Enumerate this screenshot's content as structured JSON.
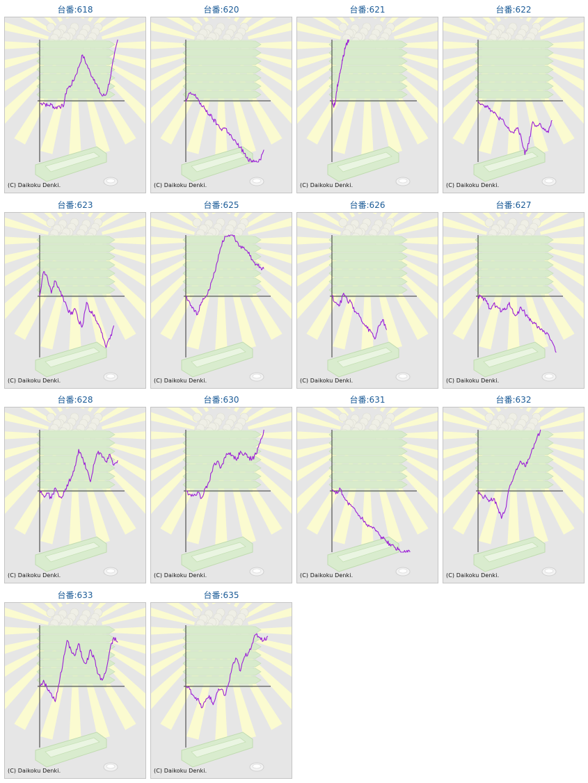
{
  "copyright": "(C) Daikoku Denki.",
  "colors": {
    "line": "#9b1fd6",
    "axis": "#333333",
    "title": "#1a5a96",
    "background": "#e6e6e6",
    "rays": "#fbfbd0",
    "machine": "#d8ebcc"
  },
  "chart_data": [
    {
      "type": "line",
      "title": "台番:618",
      "ylim": [
        -100,
        100
      ],
      "x": [
        0,
        5,
        10,
        15,
        20,
        25,
        30,
        35,
        40,
        45,
        50,
        55,
        60,
        65,
        70,
        75,
        80,
        85,
        90,
        95,
        100
      ],
      "values": [
        -5,
        -3,
        -8,
        -6,
        -12,
        -8,
        -10,
        20,
        25,
        38,
        55,
        75,
        60,
        45,
        35,
        20,
        8,
        10,
        35,
        70,
        100
      ]
    },
    {
      "type": "line",
      "title": "台番:620",
      "ylim": [
        -100,
        100
      ],
      "x": [
        0,
        5,
        10,
        15,
        20,
        25,
        30,
        35,
        40,
        45,
        50,
        55,
        60,
        65,
        70,
        75,
        80,
        85,
        90,
        95,
        100
      ],
      "values": [
        -2,
        12,
        10,
        5,
        -8,
        -14,
        -22,
        -30,
        -38,
        -46,
        -44,
        -52,
        -62,
        -70,
        -76,
        -86,
        -98,
        -98,
        -98,
        -96,
        -80
      ]
    },
    {
      "type": "line",
      "title": "台番:621",
      "ylim": [
        -100,
        100
      ],
      "x": [
        0,
        2,
        4,
        6,
        8,
        10,
        12,
        14,
        16,
        18,
        20,
        22
      ],
      "values": [
        0,
        -8,
        -5,
        15,
        30,
        45,
        55,
        70,
        80,
        92,
        97,
        100
      ]
    },
    {
      "type": "line",
      "title": "台番:622",
      "ylim": [
        -100,
        100
      ],
      "x": [
        0,
        5,
        10,
        15,
        20,
        25,
        30,
        35,
        40,
        45,
        50,
        55,
        60,
        65,
        70,
        75,
        80,
        85,
        90,
        95
      ],
      "values": [
        0,
        -5,
        -8,
        -12,
        -20,
        -26,
        -30,
        -40,
        -48,
        -52,
        -45,
        -58,
        -88,
        -70,
        -34,
        -42,
        -38,
        -48,
        -52,
        -32
      ]
    },
    {
      "type": "line",
      "title": "台番:623",
      "ylim": [
        -100,
        100
      ],
      "x": [
        0,
        5,
        10,
        15,
        20,
        25,
        30,
        35,
        40,
        45,
        50,
        55,
        60,
        65,
        70,
        75,
        80,
        85,
        90,
        95
      ],
      "values": [
        0,
        40,
        30,
        5,
        25,
        12,
        -2,
        -18,
        -30,
        -20,
        -42,
        -48,
        -10,
        -25,
        -30,
        -45,
        -60,
        -84,
        -70,
        -48
      ]
    },
    {
      "type": "line",
      "title": "台番:625",
      "ylim": [
        -100,
        100
      ],
      "x": [
        0,
        5,
        10,
        15,
        20,
        25,
        30,
        35,
        40,
        45,
        50,
        55,
        60,
        65,
        70,
        75,
        80,
        85,
        90,
        95,
        100
      ],
      "values": [
        0,
        -10,
        -20,
        -30,
        -10,
        -2,
        10,
        30,
        55,
        80,
        98,
        100,
        100,
        90,
        82,
        78,
        70,
        60,
        52,
        48,
        45
      ]
    },
    {
      "type": "line",
      "title": "台番:626",
      "ylim": [
        -100,
        100
      ],
      "x": [
        0,
        5,
        10,
        15,
        20,
        25,
        30,
        35,
        40,
        45,
        50,
        55,
        60,
        65,
        70
      ],
      "values": [
        0,
        -10,
        -15,
        5,
        -8,
        -10,
        -25,
        -32,
        -45,
        -52,
        -58,
        -70,
        -48,
        -38,
        -55
      ]
    },
    {
      "type": "line",
      "title": "台番:627",
      "ylim": [
        -100,
        100
      ],
      "x": [
        0,
        5,
        10,
        15,
        20,
        25,
        30,
        35,
        40,
        45,
        50,
        55,
        60,
        65,
        70,
        75,
        80,
        85,
        90,
        95,
        100
      ],
      "values": [
        0,
        -3,
        -8,
        -20,
        -12,
        -18,
        -25,
        -22,
        -10,
        -28,
        -30,
        -18,
        -28,
        -35,
        -45,
        -48,
        -55,
        -58,
        -62,
        -75,
        -92
      ]
    },
    {
      "type": "line",
      "title": "台番:628",
      "ylim": [
        -100,
        100
      ],
      "x": [
        0,
        5,
        10,
        15,
        20,
        25,
        30,
        35,
        40,
        45,
        50,
        55,
        60,
        65,
        70,
        75,
        80,
        85,
        90,
        95,
        100
      ],
      "values": [
        0,
        -8,
        -4,
        -12,
        5,
        -10,
        -8,
        10,
        20,
        40,
        68,
        55,
        35,
        15,
        45,
        65,
        55,
        48,
        60,
        42,
        50
      ]
    },
    {
      "type": "line",
      "title": "台番:630",
      "ylim": [
        -100,
        100
      ],
      "x": [
        0,
        5,
        10,
        15,
        20,
        25,
        30,
        35,
        40,
        45,
        50,
        55,
        60,
        65,
        70,
        75,
        80,
        85,
        90,
        95,
        100
      ],
      "values": [
        0,
        -5,
        -8,
        -2,
        -12,
        5,
        15,
        40,
        48,
        38,
        55,
        62,
        58,
        50,
        65,
        60,
        55,
        52,
        60,
        78,
        100
      ]
    },
    {
      "type": "line",
      "title": "台番:631",
      "ylim": [
        -100,
        100
      ],
      "x": [
        0,
        5,
        10,
        15,
        20,
        25,
        30,
        35,
        40,
        45,
        50,
        55,
        60,
        65,
        70,
        75,
        80,
        85,
        90,
        95,
        100
      ],
      "values": [
        0,
        -5,
        5,
        -10,
        -18,
        -25,
        -32,
        -40,
        -48,
        -55,
        -58,
        -62,
        -70,
        -78,
        -82,
        -90,
        -92,
        -96,
        -100,
        -100,
        -100
      ]
    },
    {
      "type": "line",
      "title": "台番:632",
      "ylim": [
        -100,
        100
      ],
      "x": [
        0,
        5,
        10,
        15,
        20,
        25,
        30,
        35,
        40,
        45,
        50,
        55,
        60,
        65,
        70,
        75,
        80
      ],
      "values": [
        0,
        -8,
        -10,
        -15,
        -12,
        -28,
        -45,
        -30,
        5,
        20,
        35,
        48,
        40,
        52,
        70,
        85,
        100
      ]
    },
    {
      "type": "line",
      "title": "台番:633",
      "ylim": [
        -100,
        100
      ],
      "x": [
        0,
        5,
        10,
        15,
        20,
        25,
        30,
        35,
        40,
        45,
        50,
        55,
        60,
        65,
        70,
        75,
        80,
        85,
        90,
        95,
        100
      ],
      "values": [
        0,
        10,
        -5,
        -12,
        -25,
        5,
        40,
        75,
        60,
        50,
        70,
        45,
        38,
        60,
        45,
        20,
        10,
        25,
        60,
        80,
        72
      ]
    },
    {
      "type": "line",
      "title": "台番:635",
      "ylim": [
        -100,
        100
      ],
      "x": [
        0,
        5,
        10,
        15,
        20,
        25,
        30,
        35,
        40,
        45,
        50,
        55,
        60,
        65,
        70,
        75,
        80,
        85,
        90,
        95,
        100,
        105
      ],
      "values": [
        0,
        -5,
        -15,
        -20,
        -35,
        -25,
        -15,
        -30,
        -10,
        -5,
        -15,
        5,
        35,
        45,
        25,
        48,
        55,
        70,
        85,
        80,
        75,
        82
      ]
    }
  ]
}
